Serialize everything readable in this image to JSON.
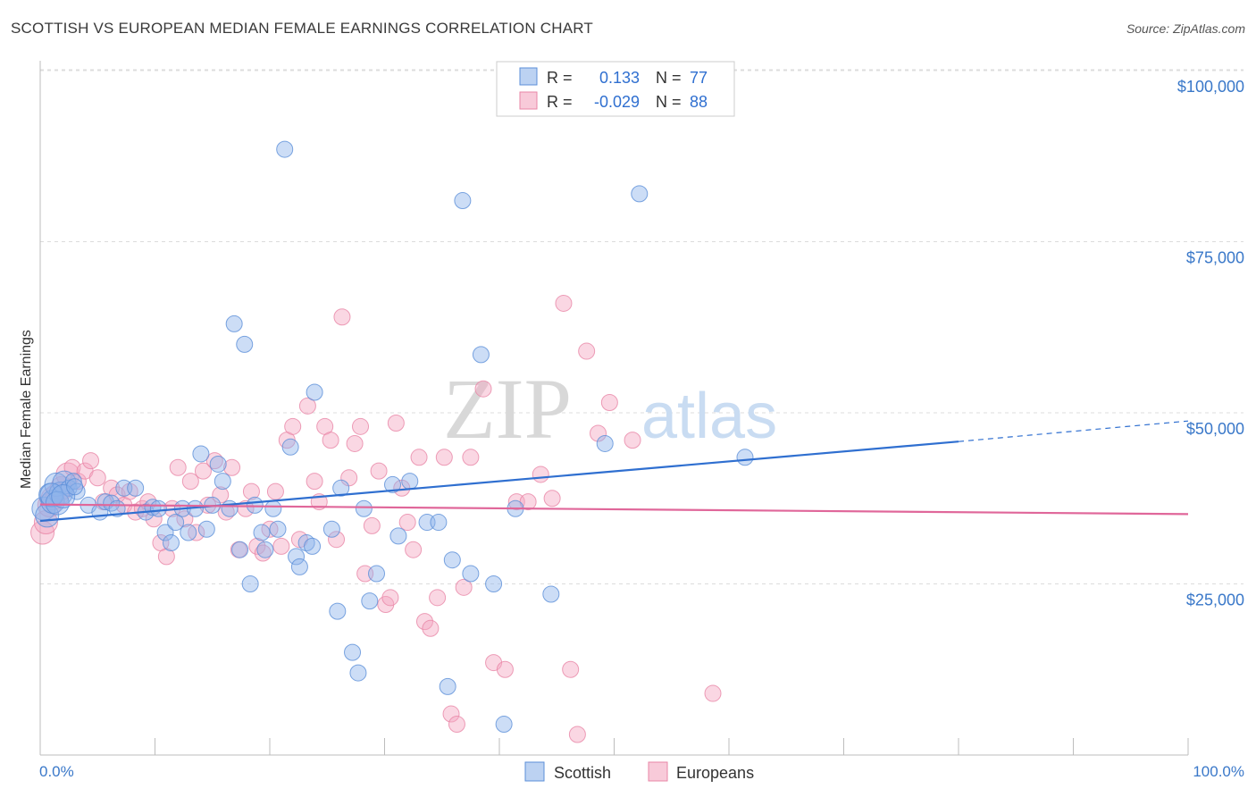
{
  "title": "SCOTTISH VS EUROPEAN MEDIAN FEMALE EARNINGS CORRELATION CHART",
  "source": "Source: ZipAtlas.com",
  "watermark": {
    "zip": "ZIP",
    "atlas": "atlas"
  },
  "chart_data": {
    "type": "scatter",
    "ylabel": "Median Female Earnings",
    "xlabel": "",
    "xlim": [
      0,
      100
    ],
    "ylim": [
      0,
      105000
    ],
    "y_ticks": [
      {
        "value": 25000,
        "label": "$25,000"
      },
      {
        "value": 50000,
        "label": "$50,000"
      },
      {
        "value": 75000,
        "label": "$75,000"
      },
      {
        "value": 100000,
        "label": "$100,000"
      }
    ],
    "x_ticks": [
      {
        "value": 0,
        "label": "0.0%"
      },
      {
        "value": 100,
        "label": "100.0%"
      }
    ],
    "legend": {
      "rows": [
        {
          "r_label": "R =",
          "r_value": "0.133",
          "n_label": "N =",
          "n_value": "77",
          "color": "#8fb4ea"
        },
        {
          "r_label": "R =",
          "r_value": "-0.029",
          "n_label": "N =",
          "n_value": "88",
          "color": "#f3a7c0"
        }
      ]
    },
    "series": [
      {
        "name": "Scottish",
        "color": "#8fb4ea",
        "stroke": "#5b8fd8",
        "trend": {
          "x0": 0,
          "y0": 34200,
          "x1": 80,
          "y1": 45800,
          "x_dash_end": 100,
          "y_dash_end": 48800,
          "color": "#2f6fd0"
        },
        "points": [
          [
            0.3,
            36000
          ],
          [
            0.6,
            35000
          ],
          [
            0.9,
            38000
          ],
          [
            1.1,
            37000
          ],
          [
            1.4,
            39500
          ],
          [
            1.8,
            38200
          ],
          [
            2.1,
            39800
          ],
          [
            2.5,
            39000
          ],
          [
            2.9,
            40000
          ],
          [
            3.2,
            38500
          ],
          [
            4.2,
            36500
          ],
          [
            5.2,
            35500
          ],
          [
            5.7,
            37000
          ],
          [
            6.2,
            36800
          ],
          [
            6.7,
            36000
          ],
          [
            7.3,
            39000
          ],
          [
            8.3,
            39000
          ],
          [
            9.2,
            35500
          ],
          [
            9.8,
            36200
          ],
          [
            10.3,
            36000
          ],
          [
            10.9,
            32500
          ],
          [
            11.4,
            31000
          ],
          [
            11.8,
            34000
          ],
          [
            12.4,
            36000
          ],
          [
            12.9,
            32500
          ],
          [
            13.5,
            36000
          ],
          [
            14.0,
            44000
          ],
          [
            14.5,
            33000
          ],
          [
            15.0,
            36500
          ],
          [
            15.5,
            42500
          ],
          [
            15.9,
            40000
          ],
          [
            16.5,
            36000
          ],
          [
            16.9,
            63000
          ],
          [
            17.4,
            30000
          ],
          [
            17.8,
            60000
          ],
          [
            18.3,
            25000
          ],
          [
            18.7,
            36500
          ],
          [
            19.3,
            32500
          ],
          [
            19.6,
            30000
          ],
          [
            20.3,
            36000
          ],
          [
            20.7,
            33000
          ],
          [
            21.3,
            88500
          ],
          [
            21.8,
            45000
          ],
          [
            22.3,
            29000
          ],
          [
            22.6,
            27500
          ],
          [
            23.2,
            31000
          ],
          [
            23.7,
            30500
          ],
          [
            23.9,
            53000
          ],
          [
            25.4,
            33000
          ],
          [
            25.9,
            21000
          ],
          [
            26.2,
            39000
          ],
          [
            27.2,
            15000
          ],
          [
            27.7,
            12000
          ],
          [
            28.2,
            36000
          ],
          [
            28.7,
            22500
          ],
          [
            29.3,
            26500
          ],
          [
            30.7,
            39500
          ],
          [
            31.2,
            32000
          ],
          [
            32.2,
            40000
          ],
          [
            33.7,
            34000
          ],
          [
            34.7,
            34000
          ],
          [
            35.5,
            10000
          ],
          [
            35.9,
            28500
          ],
          [
            36.8,
            81000
          ],
          [
            37.5,
            26500
          ],
          [
            38.4,
            58500
          ],
          [
            39.5,
            25000
          ],
          [
            40.4,
            4500
          ],
          [
            41.4,
            36000
          ],
          [
            44.5,
            23500
          ],
          [
            49.2,
            45500
          ],
          [
            52.2,
            82000
          ],
          [
            61.4,
            43500
          ],
          [
            1.0,
            38000
          ],
          [
            1.5,
            36800
          ],
          [
            2.0,
            37800
          ],
          [
            3.0,
            39200
          ]
        ]
      },
      {
        "name": "Europeans",
        "color": "#f3a7c0",
        "stroke": "#e886a6",
        "trend": {
          "x0": 0,
          "y0": 36600,
          "x1": 100,
          "y1": 35200,
          "color": "#e0679a"
        },
        "points": [
          [
            0.2,
            32500
          ],
          [
            0.5,
            34000
          ],
          [
            0.8,
            36500
          ],
          [
            1.1,
            37500
          ],
          [
            1.5,
            38000
          ],
          [
            1.9,
            39000
          ],
          [
            2.4,
            41000
          ],
          [
            2.8,
            42000
          ],
          [
            3.3,
            40000
          ],
          [
            3.9,
            41500
          ],
          [
            4.4,
            43000
          ],
          [
            5.0,
            40500
          ],
          [
            5.5,
            37000
          ],
          [
            6.2,
            39000
          ],
          [
            6.7,
            38000
          ],
          [
            7.3,
            36500
          ],
          [
            7.8,
            38500
          ],
          [
            8.3,
            35500
          ],
          [
            8.9,
            36000
          ],
          [
            9.4,
            37000
          ],
          [
            9.9,
            34500
          ],
          [
            10.5,
            31000
          ],
          [
            11.0,
            29000
          ],
          [
            11.5,
            36000
          ],
          [
            12.0,
            42000
          ],
          [
            12.6,
            34500
          ],
          [
            13.1,
            40000
          ],
          [
            13.6,
            32500
          ],
          [
            14.2,
            41500
          ],
          [
            14.6,
            36500
          ],
          [
            15.2,
            43000
          ],
          [
            15.7,
            38000
          ],
          [
            16.2,
            35500
          ],
          [
            16.7,
            42000
          ],
          [
            17.3,
            30000
          ],
          [
            17.9,
            36000
          ],
          [
            18.4,
            38500
          ],
          [
            18.9,
            30500
          ],
          [
            19.4,
            29500
          ],
          [
            20.0,
            33000
          ],
          [
            20.5,
            38500
          ],
          [
            21.0,
            30500
          ],
          [
            21.5,
            46000
          ],
          [
            22.0,
            48000
          ],
          [
            22.6,
            31500
          ],
          [
            23.3,
            51000
          ],
          [
            23.9,
            40000
          ],
          [
            24.3,
            37000
          ],
          [
            24.8,
            48000
          ],
          [
            25.3,
            46000
          ],
          [
            25.8,
            31500
          ],
          [
            26.3,
            64000
          ],
          [
            26.9,
            40500
          ],
          [
            27.4,
            45500
          ],
          [
            27.9,
            48000
          ],
          [
            28.3,
            26500
          ],
          [
            28.9,
            33500
          ],
          [
            29.5,
            41500
          ],
          [
            30.1,
            22000
          ],
          [
            30.5,
            23000
          ],
          [
            31.0,
            48500
          ],
          [
            31.5,
            39000
          ],
          [
            32.0,
            34000
          ],
          [
            32.5,
            30000
          ],
          [
            33.0,
            43500
          ],
          [
            33.5,
            19500
          ],
          [
            34.0,
            18500
          ],
          [
            34.6,
            23000
          ],
          [
            35.2,
            43500
          ],
          [
            35.8,
            6000
          ],
          [
            36.3,
            4500
          ],
          [
            36.9,
            24500
          ],
          [
            37.5,
            43500
          ],
          [
            38.6,
            53500
          ],
          [
            39.5,
            13500
          ],
          [
            40.5,
            12500
          ],
          [
            41.5,
            37000
          ],
          [
            42.5,
            37000
          ],
          [
            43.6,
            41000
          ],
          [
            44.6,
            37500
          ],
          [
            45.6,
            66000
          ],
          [
            46.2,
            12500
          ],
          [
            46.8,
            3000
          ],
          [
            47.6,
            59000
          ],
          [
            48.6,
            47000
          ],
          [
            49.6,
            51500
          ],
          [
            51.6,
            46000
          ],
          [
            58.6,
            9000
          ]
        ]
      }
    ]
  },
  "bottom_legend": [
    "Scottish",
    "Europeans"
  ]
}
